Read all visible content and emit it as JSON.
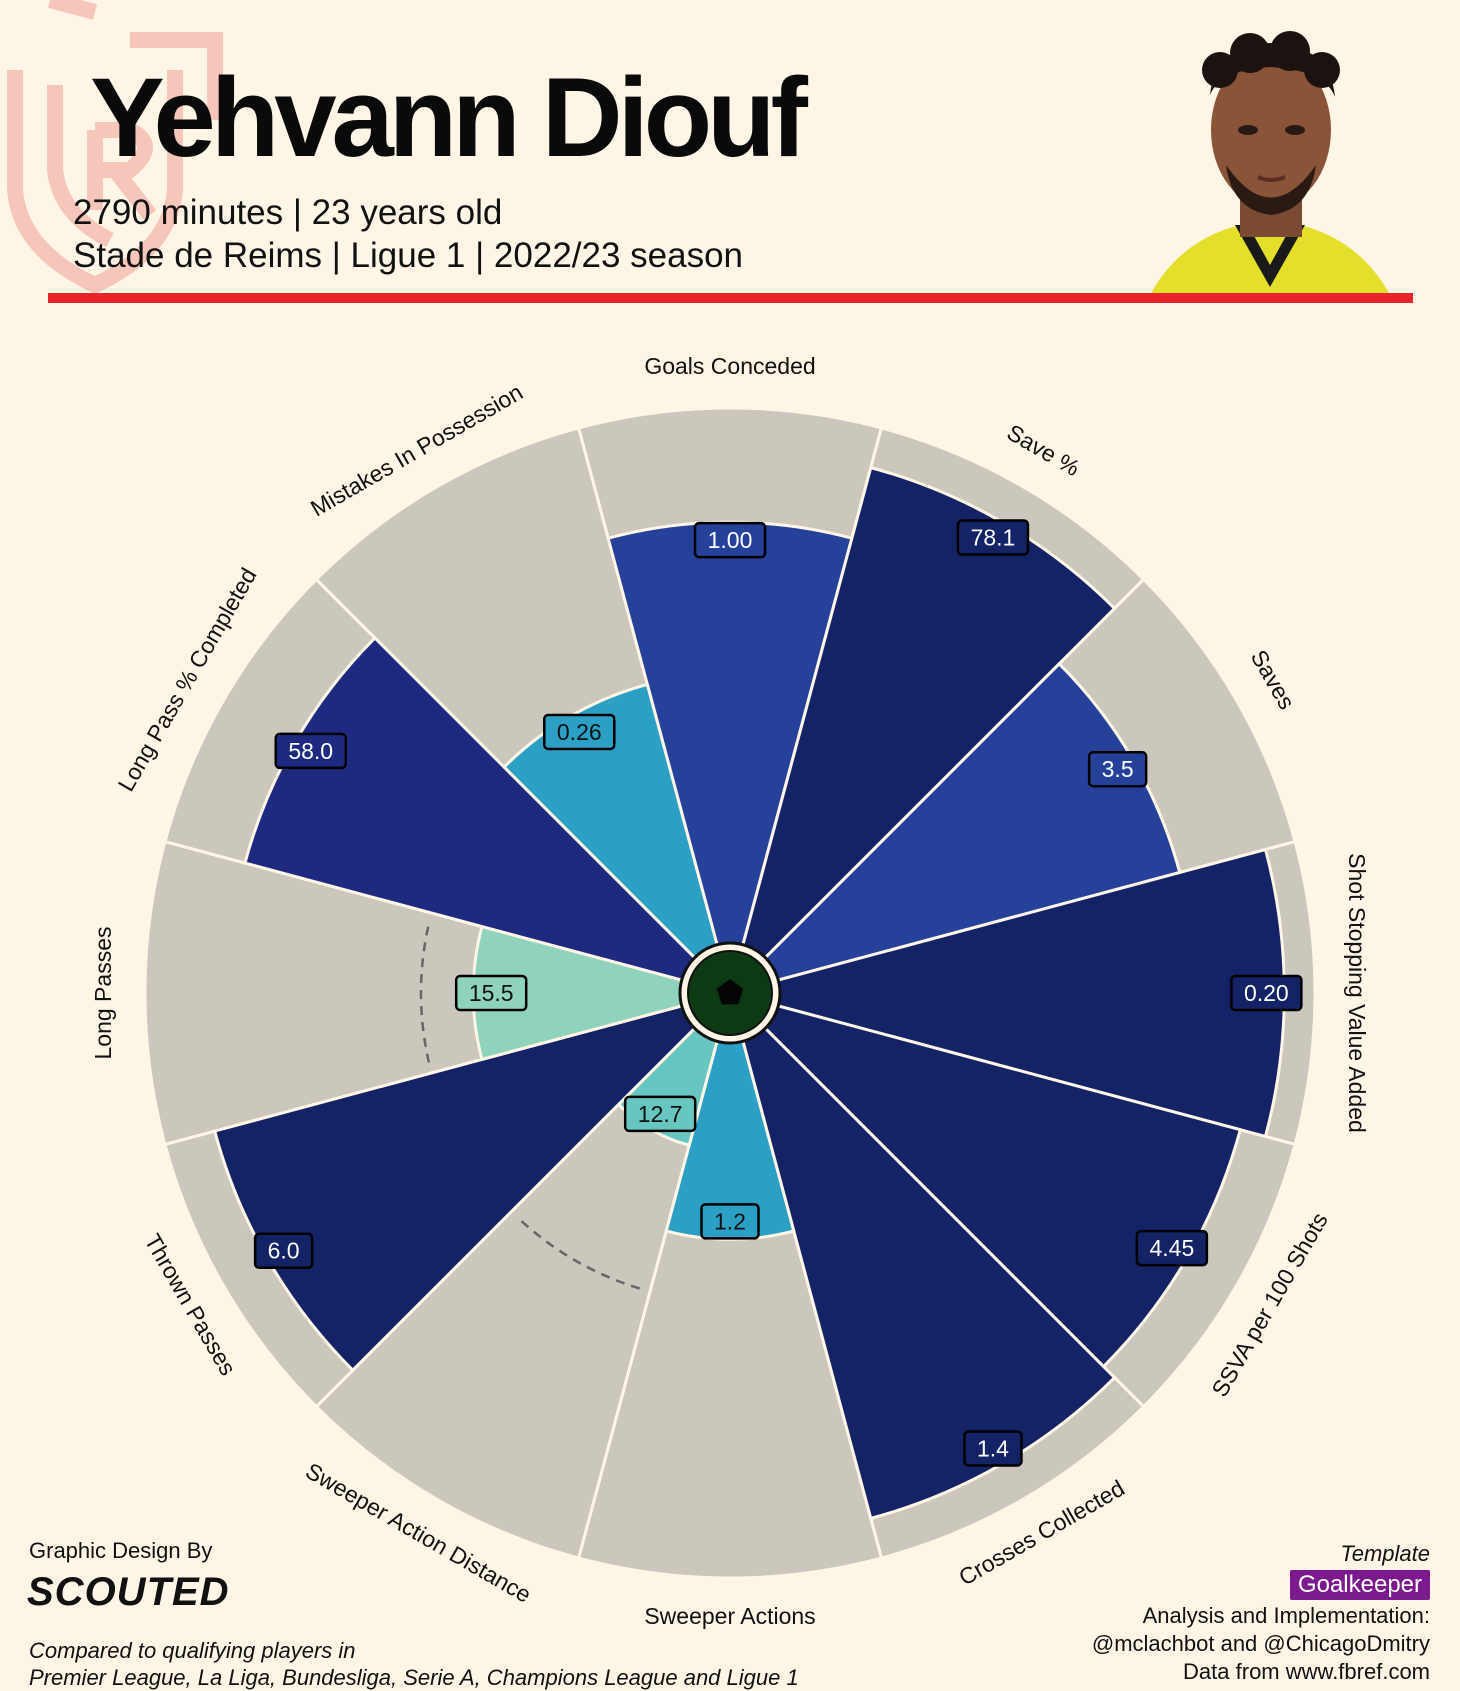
{
  "header": {
    "player_name": "Yehvann Diouf",
    "line1": "2790 minutes | 23 years old",
    "line2": "Stade de Reims | Ligue 1 | 2022/23 season"
  },
  "colors": {
    "background": "#fdf5e6",
    "accent_red": "#e8232a",
    "slice_background": "#ccc7bd",
    "template_badge": "#7a1a8c"
  },
  "chart_data": {
    "type": "polar-bar",
    "percentile_range": [
      0,
      100
    ],
    "categories": [
      "Goals Conceded",
      "Save %",
      "Saves",
      "Shot Stopping Value Added",
      "SSVA per 100 Shots",
      "Crosses Collected",
      "Sweeper Actions",
      "Sweeper Action Distance",
      "Thrown Passes",
      "Long Passes",
      "Long Pass % Completed",
      "Mistakes In Possession"
    ],
    "values": [
      "1.00",
      "78.1",
      "3.5",
      "0.20",
      "4.45",
      "1.4",
      "1.2",
      "12.7",
      "6.0",
      "15.5",
      "58.0",
      "0.26"
    ],
    "percentiles": [
      81,
      95,
      80,
      97,
      92,
      95,
      38,
      21,
      93,
      40,
      87,
      52
    ],
    "colors": [
      "#25419a",
      "#142366",
      "#25419a",
      "#142366",
      "#142366",
      "#142366",
      "#2ba0c4",
      "#68c6c0",
      "#142366",
      "#90d3bc",
      "#1d2a7f",
      "#2ba0c4"
    ],
    "reference_arcs": [
      "Sweeper Action Distance",
      "Long Passes"
    ]
  },
  "credits": {
    "design_by": "Graphic Design By",
    "brand": "SCOUTED",
    "compared_line1": "Compared to qualifying players in",
    "compared_line2": "Premier League, La Liga, Bundesliga, Serie A, Champions League and Ligue 1",
    "template_label": "Template",
    "template_name": "Goalkeeper",
    "analysis_line1": "Analysis and Implementation:",
    "analysis_line2": "@mclachbot and @ChicagoDmitry",
    "data_source": "Data from www.fbref.com"
  }
}
